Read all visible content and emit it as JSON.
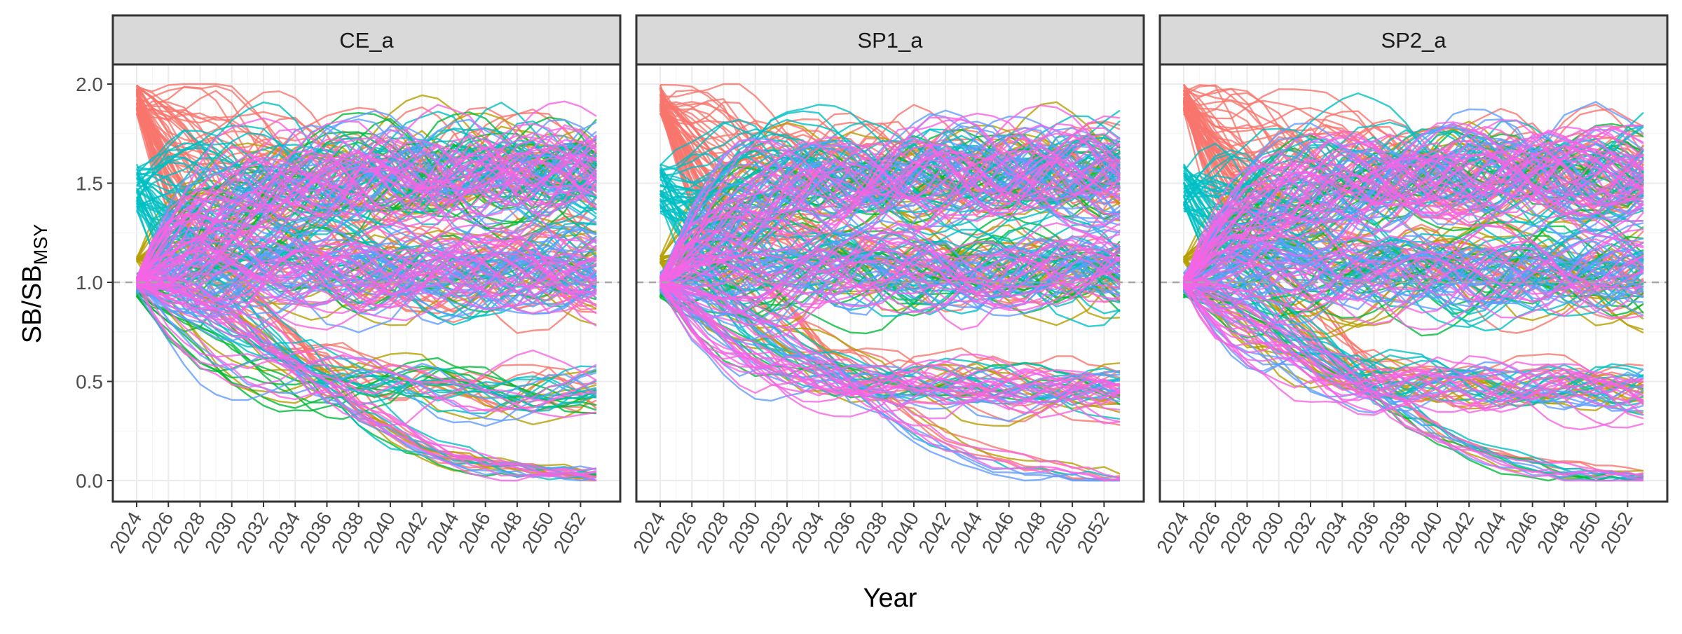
{
  "chart_data": {
    "type": "line",
    "facets": [
      "CE_a",
      "SP1_a",
      "SP2_a"
    ],
    "xlabel": "Year",
    "ylabel": {
      "main": "SB/SB",
      "subscript": "MSY"
    },
    "x_ticks": [
      2024,
      2026,
      2028,
      2030,
      2032,
      2034,
      2036,
      2038,
      2040,
      2042,
      2044,
      2046,
      2048,
      2050,
      2052
    ],
    "xlim": [
      2024,
      2053
    ],
    "ylim": [
      0.0,
      2.0
    ],
    "y_ticks": [
      "0.0",
      "0.5",
      "1.0",
      "1.5",
      "2.0"
    ],
    "reference_line": {
      "y": 1.0,
      "style": "dashed",
      "color": "#a6a6a6"
    },
    "grid": true,
    "legend": "none",
    "series_groups": [
      {
        "color": "#F8766D",
        "n_lines": 60,
        "start_range": [
          1.85,
          2.0
        ]
      },
      {
        "color": "#B79F00",
        "n_lines": 25,
        "start_range": [
          1.1,
          1.13
        ]
      },
      {
        "color": "#00BA38",
        "n_lines": 30,
        "start_range": [
          0.92,
          0.97
        ]
      },
      {
        "color": "#00BFC4",
        "n_lines": 45,
        "start_range": [
          1.35,
          1.6
        ]
      },
      {
        "color": "#619CFF",
        "n_lines": 45,
        "start_range": [
          0.95,
          1.05
        ]
      },
      {
        "color": "#F564E3",
        "n_lines": 60,
        "start_range": [
          0.97,
          1.03
        ]
      }
    ],
    "note_on_data": "Dense spaghetti of projected SB/SBMSY trajectories per facet; many trajectories capped at 2.0, a few declining to 0.0."
  }
}
